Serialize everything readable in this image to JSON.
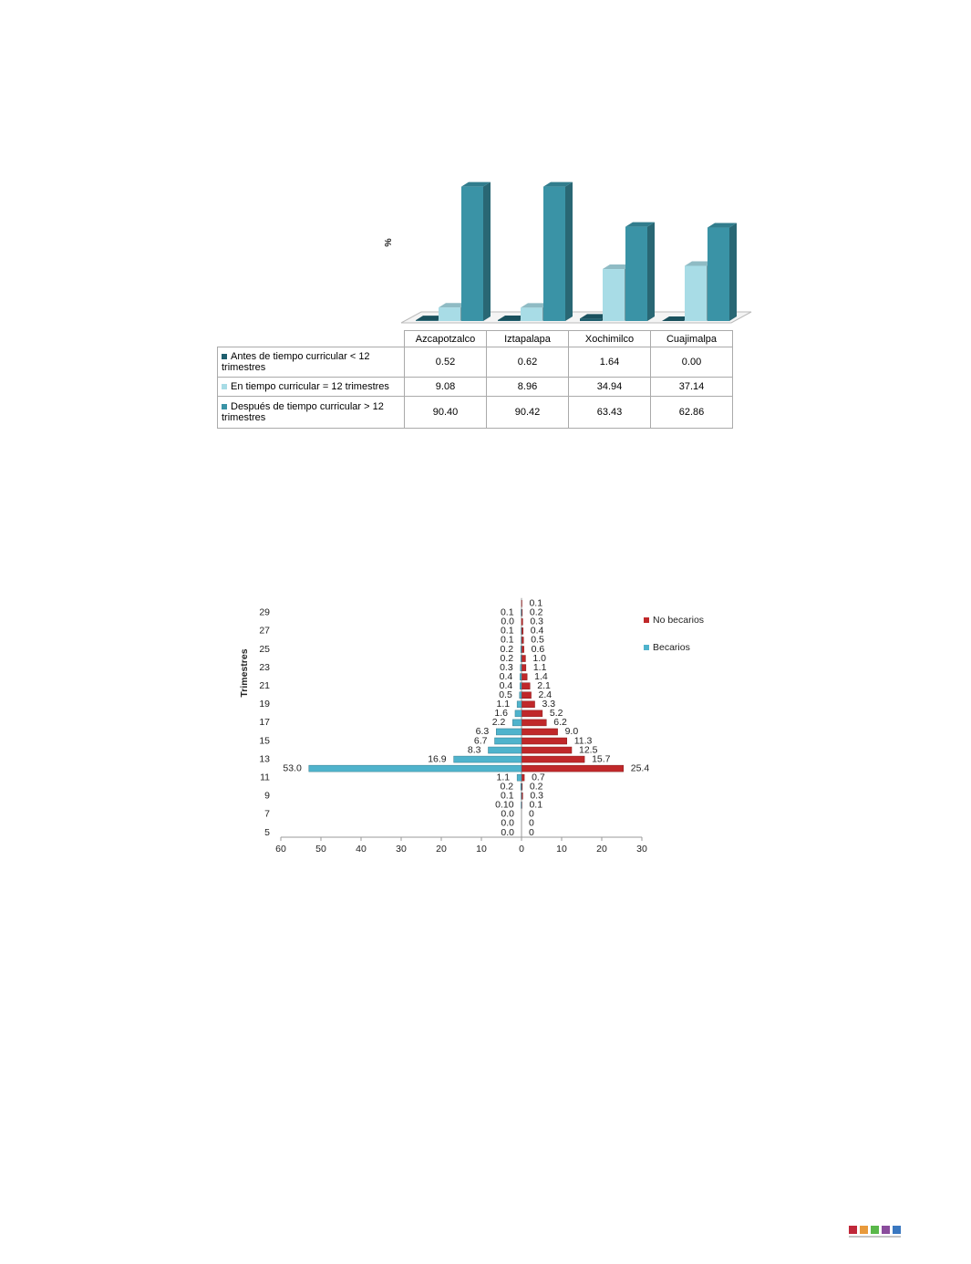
{
  "chart_data": [
    {
      "type": "bar",
      "y_label": "%",
      "ylim": [
        0,
        100
      ],
      "categories": [
        "Azcapotzalco",
        "Iztapalapa",
        "Xochimilco",
        "Cuajimalpa"
      ],
      "series": [
        {
          "name": "Antes de tiempo curricular < 12 trimestres",
          "color": "#1f5f6e",
          "values": [
            0.52,
            0.62,
            1.64,
            0
          ],
          "value_labels": [
            "0.52",
            "0.62",
            "1.64",
            "0.00"
          ]
        },
        {
          "name": "En tiempo curricular = 12 trimestres",
          "color": "#a8dce6",
          "values": [
            9.08,
            8.96,
            34.94,
            37.14
          ],
          "value_labels": [
            "9.08",
            "8.96",
            "34.94",
            "37.14"
          ]
        },
        {
          "name": "Después de tiempo curricular > 12 trimestres",
          "color": "#3a93a6",
          "values": [
            90.4,
            90.42,
            63.43,
            62.86
          ],
          "value_labels": [
            "90.40",
            "90.42",
            "63.43",
            "62.86"
          ]
        }
      ]
    },
    {
      "type": "pyramid",
      "y_label": "Trimestres",
      "categories": [
        5,
        null,
        7,
        null,
        9,
        null,
        11,
        null,
        13,
        null,
        15,
        null,
        17,
        null,
        19,
        null,
        21,
        null,
        23,
        null,
        25,
        null,
        27,
        null,
        29,
        null
      ],
      "xlim": [
        -60,
        30
      ],
      "xticks": [
        {
          "value": -60,
          "label": "60"
        },
        {
          "value": -50,
          "label": "50"
        },
        {
          "value": -40,
          "label": "40"
        },
        {
          "value": -30,
          "label": "30"
        },
        {
          "value": -20,
          "label": "20"
        },
        {
          "value": -10,
          "label": "10"
        },
        0,
        10,
        20,
        30
      ],
      "series": [
        {
          "name": "No becarios",
          "color": "#c0282a",
          "side": "right",
          "values": [
            0,
            0,
            0,
            0.1,
            0.3,
            0.2,
            0.7,
            25.4,
            15.7,
            12.5,
            11.3,
            9.0,
            6.2,
            5.2,
            3.3,
            2.4,
            2.1,
            1.4,
            1.1,
            1.0,
            0.6,
            0.5,
            0.4,
            0.3,
            0.2,
            0.1
          ],
          "value_labels": [
            "0",
            "0",
            "0",
            "0.1",
            "0.3",
            "0.2",
            "0.7",
            "25.4",
            "15.7",
            "12.5",
            "11.3",
            "9.0",
            "6.2",
            "5.2",
            "3.3",
            "2.4",
            "2.1",
            "1.4",
            "1.1",
            "1.0",
            "0.6",
            "0.5",
            "0.4",
            "0.3",
            "0.2",
            "0.1"
          ]
        },
        {
          "name": "Becarios",
          "color": "#4fb3cc",
          "side": "left",
          "values": [
            0,
            0,
            0,
            0.1,
            0.1,
            0.2,
            1.1,
            53.0,
            16.9,
            8.3,
            6.7,
            6.3,
            2.2,
            1.6,
            1.1,
            0.5,
            0.4,
            0.4,
            0.3,
            0.2,
            0.2,
            0.1,
            0.1,
            0,
            0.1,
            null
          ],
          "value_labels": [
            "0.0",
            "0.0",
            "0.0",
            "0.10",
            "0.1",
            "0.2",
            "1.1",
            "53.0",
            "16.9",
            "8.3",
            "6.7",
            "6.3",
            "2.2",
            "1.6",
            "1.1",
            "0.5",
            "0.4",
            "0.4",
            "0.3",
            "0.2",
            "0.2",
            "0.1",
            "0.1",
            "0.0",
            "0.1",
            null
          ]
        }
      ]
    }
  ]
}
